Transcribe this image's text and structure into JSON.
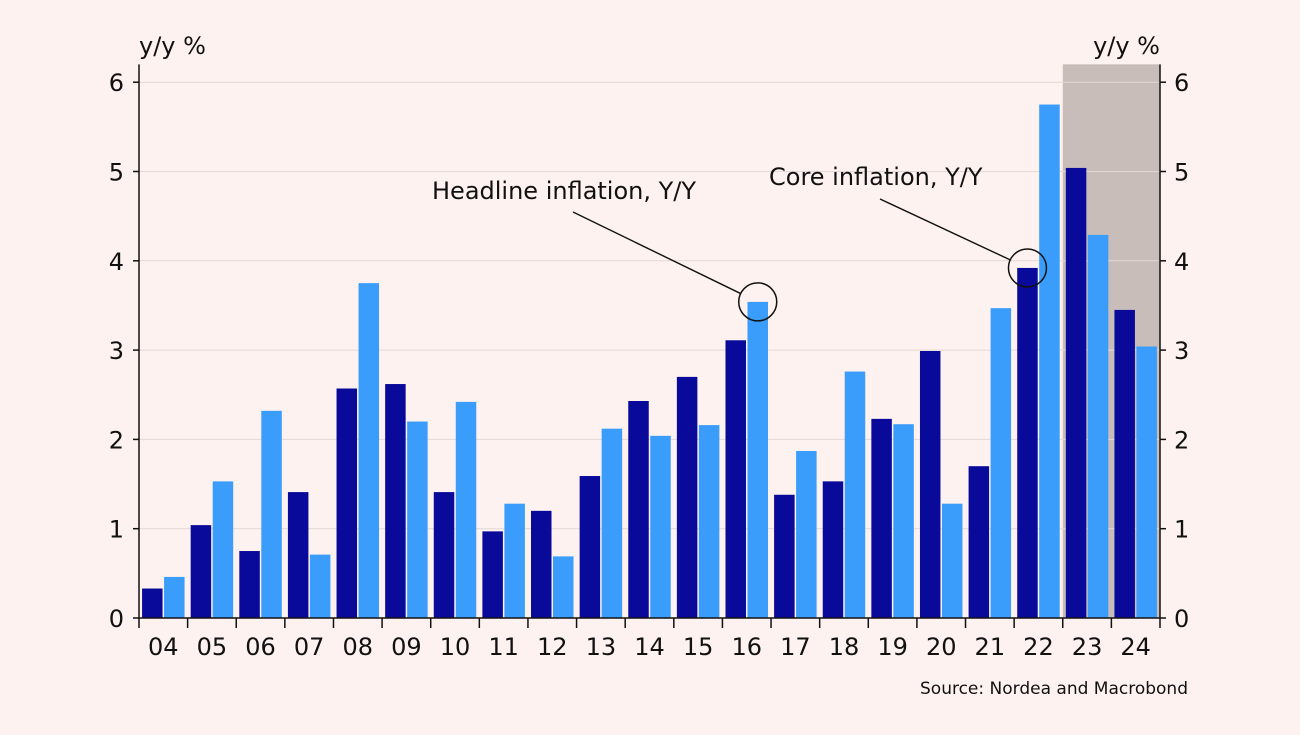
{
  "chart_data": {
    "type": "bar",
    "categories": [
      "04",
      "05",
      "06",
      "07",
      "08",
      "09",
      "10",
      "11",
      "12",
      "13",
      "14",
      "15",
      "16",
      "17",
      "18",
      "19",
      "20",
      "21",
      "22",
      "23",
      "24"
    ],
    "series": [
      {
        "values": [
          0.33,
          1.04,
          0.75,
          1.41,
          2.57,
          2.62,
          1.41,
          0.97,
          1.2,
          1.59,
          2.43,
          2.7,
          3.11,
          1.38,
          1.53,
          2.23,
          2.99,
          1.7,
          3.92,
          5.04,
          3.45
        ]
      },
      {
        "values": [
          0.46,
          1.53,
          2.32,
          0.71,
          3.75,
          2.2,
          2.42,
          1.28,
          0.69,
          2.12,
          2.04,
          2.16,
          3.54,
          1.87,
          2.76,
          2.17,
          1.28,
          3.47,
          5.75,
          4.29,
          3.04
        ]
      }
    ],
    "colors": {
      "core": "#0a0a9a",
      "headline": "#3a9dfc",
      "forecast_shade": "#c9bdba",
      "background": "#fdf2ef"
    },
    "yticks": [
      0,
      1,
      2,
      3,
      4,
      5,
      6
    ],
    "ylim": [
      0,
      6.2
    ],
    "y_unit_left": "y/y %",
    "y_unit_right": "y/y %",
    "forecast_shaded_categories": [
      "23",
      "24"
    ],
    "grid": true,
    "annotations": [
      {
        "text": "Headline inflation, Y/Y",
        "category": "16",
        "series_index": 1
      },
      {
        "text": "Core inflation, Y/Y",
        "category": "22",
        "series_index": 0
      }
    ],
    "source": "Source: Nordea and Macrobond"
  }
}
